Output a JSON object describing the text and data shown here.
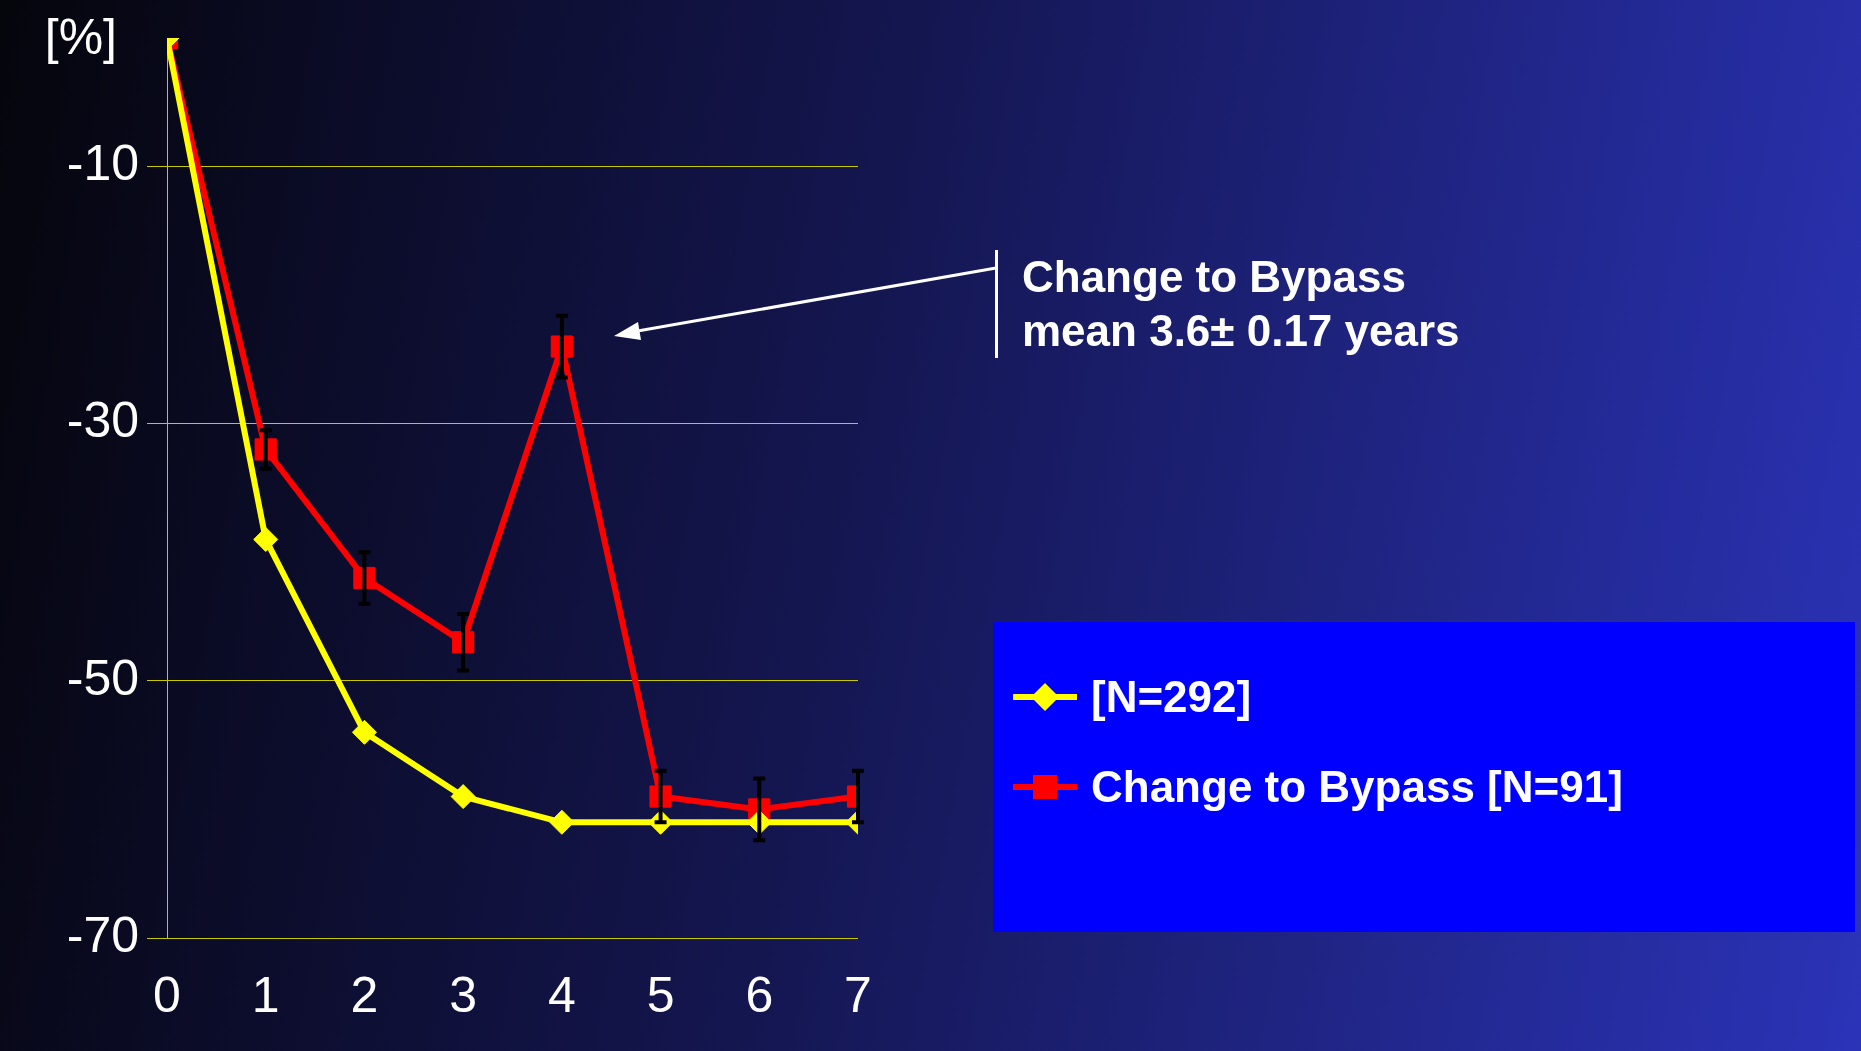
{
  "chart_data": {
    "type": "line",
    "ylabel": "[%]",
    "x": [
      0,
      1,
      2,
      3,
      4,
      5,
      6,
      7
    ],
    "xlim": [
      0,
      7
    ],
    "xticks": [
      0,
      1,
      2,
      3,
      4,
      5,
      6,
      7
    ],
    "ylim": [
      -70,
      0
    ],
    "yticks": [
      -10,
      -30,
      -50,
      -70
    ],
    "grid": "y",
    "legend": "right",
    "line_style": "solid",
    "series": [
      {
        "name": "[N=292]",
        "color": "#ffff00",
        "marker": "diamond",
        "values": [
          0,
          -39,
          -54,
          -59,
          -61,
          -61,
          -61,
          -61
        ]
      },
      {
        "name": "Change to Bypass [N=91]",
        "color": "#ff0000",
        "marker": "square",
        "values": [
          0,
          -32,
          -42,
          -47,
          -24,
          -59,
          -60,
          -59
        ],
        "errors": [
          null,
          1.5,
          2,
          2.2,
          2.4,
          2,
          2.4,
          2
        ]
      }
    ],
    "annotations": [
      "Change to Bypass\nmean 3.6± 0.17 years"
    ]
  }
}
